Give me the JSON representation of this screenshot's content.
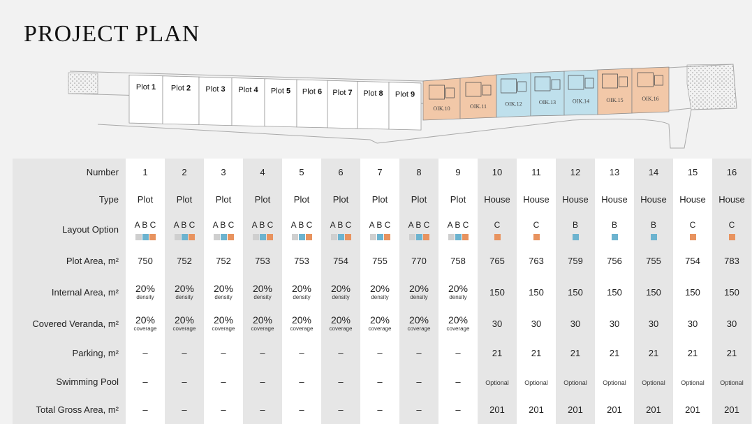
{
  "title": "PROJECT PLAN",
  "colors": {
    "orange": "#e8935f",
    "blue": "#6cb3cf",
    "grey": "#cfcfcf",
    "house_c_fill": "#f2c8a8",
    "house_b_fill": "#bfe0ec"
  },
  "site_plan": {
    "plots": [
      {
        "prefix": "Plot",
        "num": "1"
      },
      {
        "prefix": "Plot",
        "num": "2"
      },
      {
        "prefix": "Plot",
        "num": "3"
      },
      {
        "prefix": "Plot",
        "num": "4"
      },
      {
        "prefix": "Plot",
        "num": "5"
      },
      {
        "prefix": "Plot",
        "num": "6"
      },
      {
        "prefix": "Plot",
        "num": "7"
      },
      {
        "prefix": "Plot",
        "num": "8"
      },
      {
        "prefix": "Plot",
        "num": "9"
      }
    ],
    "houses": [
      {
        "label": "OIK.10",
        "type": "C"
      },
      {
        "label": "OIK.11",
        "type": "C"
      },
      {
        "label": "OIK.12",
        "type": "B"
      },
      {
        "label": "OIK.13",
        "type": "B"
      },
      {
        "label": "OIK.14",
        "type": "B"
      },
      {
        "label": "OIK.15",
        "type": "C"
      },
      {
        "label": "OIK.16",
        "type": "C"
      }
    ]
  },
  "table": {
    "labels": {
      "number": "Number",
      "type": "Type",
      "layout": "Layout Option",
      "plot_area": "Plot Area, m²",
      "internal_area": "Internal Area, m²",
      "veranda": "Covered Veranda, m²",
      "parking": "Parking, m²",
      "pool": "Swimming Pool",
      "total": "Total Gross Area, m²"
    },
    "columns": [
      {
        "number": "1",
        "type": "Plot",
        "layout": "A B C",
        "plot_area": "750",
        "internal": "20%",
        "internal_note": "density",
        "veranda": "20%",
        "veranda_note": "coverage",
        "parking": "–",
        "pool": "–",
        "total": "–"
      },
      {
        "number": "2",
        "type": "Plot",
        "layout": "A B C",
        "plot_area": "752",
        "internal": "20%",
        "internal_note": "density",
        "veranda": "20%",
        "veranda_note": "coverage",
        "parking": "–",
        "pool": "–",
        "total": "–"
      },
      {
        "number": "3",
        "type": "Plot",
        "layout": "A B C",
        "plot_area": "752",
        "internal": "20%",
        "internal_note": "density",
        "veranda": "20%",
        "veranda_note": "coverage",
        "parking": "–",
        "pool": "–",
        "total": "–"
      },
      {
        "number": "4",
        "type": "Plot",
        "layout": "A B C",
        "plot_area": "753",
        "internal": "20%",
        "internal_note": "density",
        "veranda": "20%",
        "veranda_note": "coverage",
        "parking": "–",
        "pool": "–",
        "total": "–"
      },
      {
        "number": "5",
        "type": "Plot",
        "layout": "A B C",
        "plot_area": "753",
        "internal": "20%",
        "internal_note": "density",
        "veranda": "20%",
        "veranda_note": "coverage",
        "parking": "–",
        "pool": "–",
        "total": "–"
      },
      {
        "number": "6",
        "type": "Plot",
        "layout": "A B C",
        "plot_area": "754",
        "internal": "20%",
        "internal_note": "density",
        "veranda": "20%",
        "veranda_note": "coverage",
        "parking": "–",
        "pool": "–",
        "total": "–"
      },
      {
        "number": "7",
        "type": "Plot",
        "layout": "A B C",
        "plot_area": "755",
        "internal": "20%",
        "internal_note": "density",
        "veranda": "20%",
        "veranda_note": "coverage",
        "parking": "–",
        "pool": "–",
        "total": "–"
      },
      {
        "number": "8",
        "type": "Plot",
        "layout": "A B C",
        "plot_area": "770",
        "internal": "20%",
        "internal_note": "density",
        "veranda": "20%",
        "veranda_note": "coverage",
        "parking": "–",
        "pool": "–",
        "total": "–"
      },
      {
        "number": "9",
        "type": "Plot",
        "layout": "A B C",
        "plot_area": "758",
        "internal": "20%",
        "internal_note": "density",
        "veranda": "20%",
        "veranda_note": "coverage",
        "parking": "–",
        "pool": "–",
        "total": "–"
      },
      {
        "number": "10",
        "type": "House",
        "layout": "C",
        "plot_area": "765",
        "internal": "150",
        "internal_note": "",
        "veranda": "30",
        "veranda_note": "",
        "parking": "21",
        "pool": "Optional",
        "total": "201"
      },
      {
        "number": "11",
        "type": "House",
        "layout": "C",
        "plot_area": "763",
        "internal": "150",
        "internal_note": "",
        "veranda": "30",
        "veranda_note": "",
        "parking": "21",
        "pool": "Optional",
        "total": "201"
      },
      {
        "number": "12",
        "type": "House",
        "layout": "B",
        "plot_area": "759",
        "internal": "150",
        "internal_note": "",
        "veranda": "30",
        "veranda_note": "",
        "parking": "21",
        "pool": "Optional",
        "total": "201"
      },
      {
        "number": "13",
        "type": "House",
        "layout": "B",
        "plot_area": "756",
        "internal": "150",
        "internal_note": "",
        "veranda": "30",
        "veranda_note": "",
        "parking": "21",
        "pool": "Optional",
        "total": "201"
      },
      {
        "number": "14",
        "type": "House",
        "layout": "B",
        "plot_area": "755",
        "internal": "150",
        "internal_note": "",
        "veranda": "30",
        "veranda_note": "",
        "parking": "21",
        "pool": "Optional",
        "total": "201"
      },
      {
        "number": "15",
        "type": "House",
        "layout": "C",
        "plot_area": "754",
        "internal": "150",
        "internal_note": "",
        "veranda": "30",
        "veranda_note": "",
        "parking": "21",
        "pool": "Optional",
        "total": "201"
      },
      {
        "number": "16",
        "type": "House",
        "layout": "C",
        "plot_area": "783",
        "internal": "150",
        "internal_note": "",
        "veranda": "30",
        "veranda_note": "",
        "parking": "21",
        "pool": "Optional",
        "total": "201"
      }
    ]
  }
}
